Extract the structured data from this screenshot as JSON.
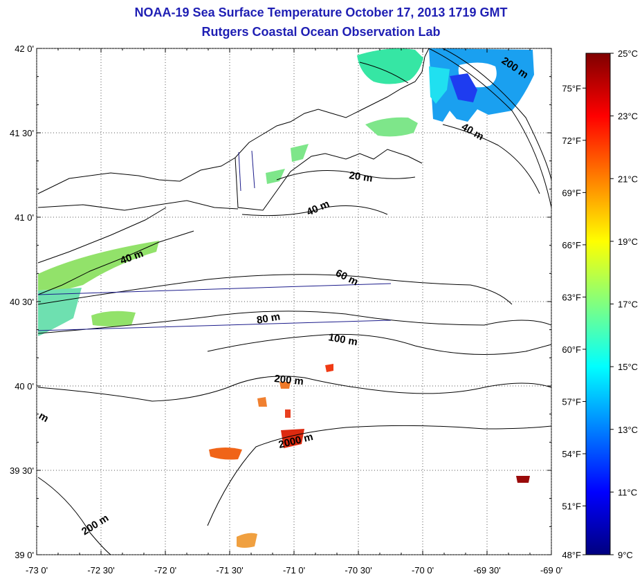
{
  "title": "NOAA-19 Sea Surface Temperature October 17, 2013 1719 GMT",
  "subtitle": "Rutgers Coastal Ocean Observation Lab",
  "map": {
    "lon_range": [
      -73.0,
      -69.0
    ],
    "lat_range": [
      39.0,
      42.0
    ],
    "lon_ticks": [
      "-73 0'",
      "-72 30'",
      "-72 0'",
      "-71 30'",
      "-71 0'",
      "-70 30'",
      "-70 0'",
      "-69 30'",
      "-69 0'"
    ],
    "lat_ticks": [
      "42 0'",
      "41 30'",
      "41 0'",
      "40 30'",
      "40 0'",
      "39 30'",
      "39 0'"
    ],
    "grid": "dotted",
    "contour_labels": [
      "20 m",
      "40 m",
      "40 m",
      "40 m",
      "60 m",
      "80 m",
      "100 m",
      "200 m",
      "200 m",
      "200 m",
      "2000 m",
      "m"
    ]
  },
  "colorbar": {
    "celsius_labels": [
      "25°C",
      "23°C",
      "21°C",
      "19°C",
      "17°C",
      "15°C",
      "13°C",
      "11°C",
      "9°C"
    ],
    "fahrenheit_labels": [
      "75°F",
      "72°F",
      "69°F",
      "66°F",
      "63°F",
      "60°F",
      "57°F",
      "54°F",
      "51°F",
      "48°F"
    ],
    "range_c": [
      9,
      25
    ],
    "colors": [
      "#00007f",
      "#0000ff",
      "#0080ff",
      "#00ffff",
      "#80ff80",
      "#ffff00",
      "#ff8000",
      "#ff0000",
      "#7f0000"
    ]
  }
}
